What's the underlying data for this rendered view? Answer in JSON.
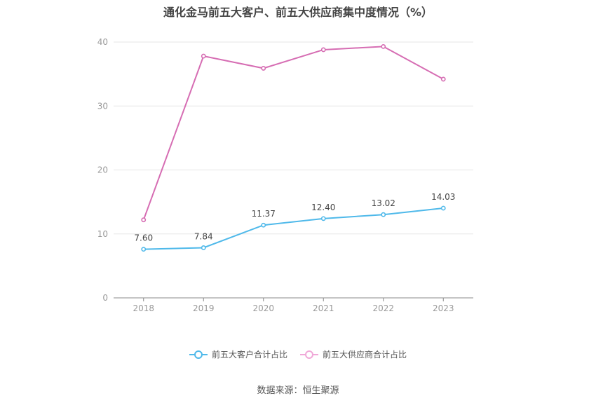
{
  "chart_data": {
    "type": "line",
    "title": "通化金马前五大客户、前五大供应商集中度情况（%）",
    "categories": [
      "2018",
      "2019",
      "2020",
      "2021",
      "2022",
      "2023"
    ],
    "ylim": [
      0,
      40
    ],
    "yticks": [
      0,
      10,
      20,
      30,
      40
    ],
    "grid": true,
    "legend_position": "bottom",
    "series": [
      {
        "name": "前五大客户合计占比",
        "color": "#4fb9ea",
        "values": [
          7.6,
          7.84,
          11.37,
          12.4,
          13.02,
          14.03
        ],
        "labels_shown": true
      },
      {
        "name": "前五大供应商合计占比",
        "color": "#d66db3",
        "values": [
          12.2,
          37.8,
          35.9,
          38.8,
          39.3,
          34.2
        ],
        "labels_shown": false
      }
    ],
    "source": "数据来源：恒生聚源"
  }
}
